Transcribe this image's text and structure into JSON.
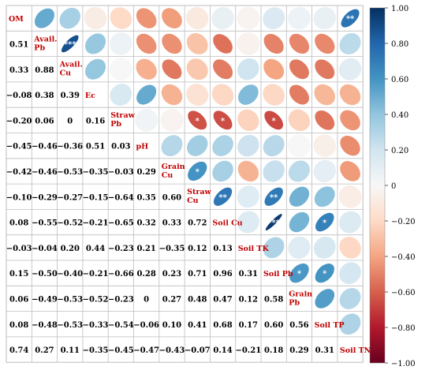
{
  "chart_data": {
    "type": "heatmap",
    "variables": [
      "OM",
      "Avail. Pb",
      "Avail. Cu",
      "Ec",
      "Straw Pb",
      "pH",
      "Grain Cu",
      "Straw Cu",
      "Soil Cu",
      "Soil TK",
      "Soil Pb",
      "Grain Pb",
      "Soil TP",
      "Soil TN"
    ],
    "diagonal_labels": [
      [
        "OM"
      ],
      [
        "Avail.",
        "Pb"
      ],
      [
        "Avail.",
        "Cu"
      ],
      [
        "Ec"
      ],
      [
        "Straw",
        "Pb"
      ],
      [
        "pH"
      ],
      [
        "Grain",
        "Cu"
      ],
      [
        "Straw",
        "Cu"
      ],
      [
        "Soil Cu"
      ],
      [
        "Soil TK"
      ],
      [
        "Soil Pb"
      ],
      [
        "Grain",
        "Pb"
      ],
      [
        "Soil TP"
      ],
      [
        "Soil TN"
      ]
    ],
    "lower_triangle_values": [
      [],
      [
        "0.51"
      ],
      [
        "0.33",
        "0.88"
      ],
      [
        "−0.08",
        "0.38",
        "0.39"
      ],
      [
        "−0.20",
        "0.06",
        "0",
        "0.16"
      ],
      [
        "−0.45",
        "−0.46",
        "−0.36",
        "0.51",
        "0.03"
      ],
      [
        "−0.42",
        "−0.46",
        "−0.53",
        "−0.35",
        "−0.03",
        "0.29"
      ],
      [
        "−0.10",
        "−0.29",
        "−0.27",
        "−0.15",
        "−0.64",
        "0.35",
        "0.60"
      ],
      [
        "0.08",
        "−0.55",
        "−0.52",
        "−0.21",
        "−0.65",
        "0.32",
        "0.33",
        "0.72"
      ],
      [
        "−0.03",
        "−0.04",
        "0.20",
        "0.44",
        "−0.23",
        "0.21",
        "−0.35",
        "0.12",
        "0.13"
      ],
      [
        "0.15",
        "−0.50",
        "−0.40",
        "−0.21",
        "−0.66",
        "0.28",
        "0.23",
        "0.71",
        "0.96",
        "0.31"
      ],
      [
        "0.06",
        "−0.49",
        "−0.53",
        "−0.52",
        "−0.23",
        "0",
        "0.27",
        "0.48",
        "0.47",
        "0.12",
        "0.58"
      ],
      [
        "0.08",
        "−0.48",
        "−0.53",
        "−0.33",
        "−0.54",
        "−0.06",
        "0.10",
        "0.41",
        "0.68",
        "0.17",
        "0.60",
        "0.56"
      ],
      [
        "0.74",
        "0.27",
        "0.11",
        "−0.35",
        "−0.45",
        "−0.47",
        "−0.43",
        "−0.07",
        "0.14",
        "−0.21",
        "0.18",
        "0.29",
        "0.31"
      ]
    ],
    "significance": [
      {
        "row": 0,
        "col": 13,
        "mark": "**"
      },
      {
        "row": 1,
        "col": 2,
        "mark": "***"
      },
      {
        "row": 4,
        "col": 7,
        "mark": "*"
      },
      {
        "row": 4,
        "col": 8,
        "mark": "*"
      },
      {
        "row": 4,
        "col": 10,
        "mark": "*"
      },
      {
        "row": 6,
        "col": 7,
        "mark": "*"
      },
      {
        "row": 7,
        "col": 8,
        "mark": "**"
      },
      {
        "row": 7,
        "col": 10,
        "mark": "**"
      },
      {
        "row": 8,
        "col": 10,
        "mark": "***"
      },
      {
        "row": 8,
        "col": 12,
        "mark": "*"
      },
      {
        "row": 10,
        "col": 11,
        "mark": "*"
      },
      {
        "row": 10,
        "col": 12,
        "mark": "*"
      }
    ],
    "colorbar": {
      "range": [
        -1,
        1
      ],
      "tick_labels": [
        "1.00",
        "0.80",
        "0.60",
        "0.40",
        "0.20",
        "0",
        "−0.20",
        "−0.40",
        "−0.60",
        "−0.80",
        "−1.00"
      ],
      "colors": {
        "negative": "#67001f",
        "zero": "#f7f7f7",
        "positive": "#053061"
      }
    },
    "label_color": "#c00000",
    "grid_color": "#bdbdbd"
  }
}
